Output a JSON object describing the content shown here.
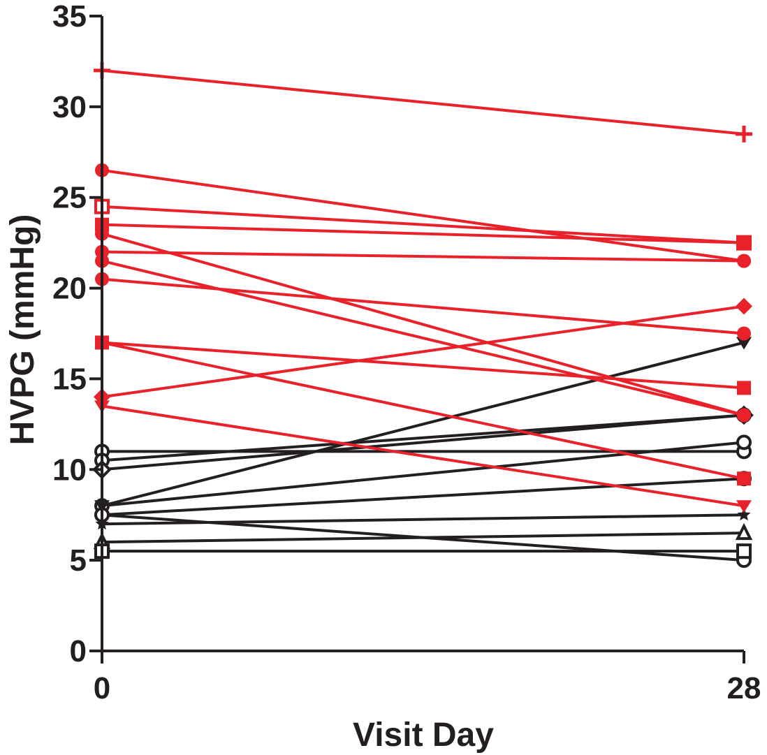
{
  "chart_data": {
    "type": "line",
    "title": "",
    "xlabel": "Visit Day",
    "ylabel": "HVPG (mmHg)",
    "x": [
      0,
      28
    ],
    "x_tick_labels": [
      "0",
      "28"
    ],
    "ylim": [
      0,
      35
    ],
    "y_ticks": [
      0,
      5,
      10,
      15,
      20,
      25,
      30,
      35
    ],
    "y_tick_labels": [
      "0",
      "5",
      "10",
      "15",
      "20",
      "25",
      "30",
      "35"
    ],
    "grid": false,
    "legend": "none",
    "colors": {
      "red": "#e8212a",
      "black": "#231f20"
    },
    "series": [
      {
        "color": "red",
        "marker": "plus",
        "values": [
          32,
          28.5
        ]
      },
      {
        "color": "red",
        "marker": "circle",
        "values": [
          26.5,
          21.5
        ]
      },
      {
        "color": "red",
        "marker": "open-square",
        "values": [
          24.5,
          22.5
        ]
      },
      {
        "color": "red",
        "marker": "square",
        "values": [
          23.5,
          22.5
        ]
      },
      {
        "color": "red",
        "marker": "circle",
        "values": [
          23,
          13
        ]
      },
      {
        "color": "red",
        "marker": "circle",
        "values": [
          22,
          21.5
        ]
      },
      {
        "color": "red",
        "marker": "circle",
        "values": [
          21.5,
          13
        ]
      },
      {
        "color": "red",
        "marker": "circle",
        "values": [
          20.5,
          17.5
        ]
      },
      {
        "color": "red",
        "marker": "square",
        "values": [
          17,
          14.5
        ]
      },
      {
        "color": "red",
        "marker": "square",
        "values": [
          17,
          9.5
        ]
      },
      {
        "color": "red",
        "marker": "diamond",
        "values": [
          14,
          19
        ]
      },
      {
        "color": "red",
        "marker": "triangle-down",
        "values": [
          13.5,
          8
        ]
      },
      {
        "color": "black",
        "marker": "open-circle",
        "values": [
          11,
          11
        ]
      },
      {
        "color": "black",
        "marker": "open-circle",
        "values": [
          10.5,
          13
        ]
      },
      {
        "color": "black",
        "marker": "open-diamond",
        "values": [
          10,
          13
        ]
      },
      {
        "color": "black",
        "marker": "open-circle",
        "values": [
          8,
          11.5
        ]
      },
      {
        "color": "black",
        "marker": "triangle-down",
        "values": [
          8,
          17
        ]
      },
      {
        "color": "black",
        "marker": "open-circle",
        "values": [
          7.5,
          9.5
        ]
      },
      {
        "color": "black",
        "marker": "open-circle",
        "values": [
          7.5,
          5
        ]
      },
      {
        "color": "black",
        "marker": "star",
        "values": [
          7,
          7.5
        ]
      },
      {
        "color": "black",
        "marker": "open-triangle",
        "values": [
          6,
          6.5
        ]
      },
      {
        "color": "black",
        "marker": "open-square",
        "values": [
          5.5,
          5.5
        ]
      }
    ]
  }
}
